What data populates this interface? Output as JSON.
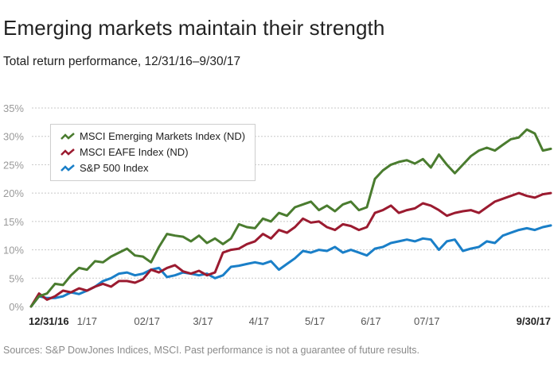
{
  "header": {
    "title": "Emerging markets maintain their strength",
    "subtitle": "Total return performance, 12/31/16–9/30/17"
  },
  "footer": {
    "source": "Sources: S&P DowJones Indices, MSCI. Past performance is not a guarantee of future results."
  },
  "chart_data": {
    "type": "line",
    "title": "Emerging markets maintain their strength",
    "subtitle": "Total return performance, 12/31/16–9/30/17",
    "xlabel": "",
    "ylabel": "",
    "ylim": [
      0,
      35
    ],
    "yticks": [
      0,
      5,
      10,
      15,
      20,
      25,
      30,
      35
    ],
    "ytick_labels": [
      "0%",
      "5%",
      "10%",
      "15%",
      "20%",
      "25%",
      "30%",
      "35%"
    ],
    "grid": true,
    "legend_position": "top-left",
    "x_range": [
      0,
      65
    ],
    "xticks": [
      {
        "x": 0,
        "label": "12/31/16",
        "bold": true
      },
      {
        "x": 7,
        "label": "1/17",
        "bold": false
      },
      {
        "x": 14.5,
        "label": "02/17",
        "bold": false
      },
      {
        "x": 21.5,
        "label": "3/17",
        "bold": false
      },
      {
        "x": 28.5,
        "label": "4/17",
        "bold": false
      },
      {
        "x": 35.5,
        "label": "5/17",
        "bold": false
      },
      {
        "x": 42.5,
        "label": "6/17",
        "bold": false
      },
      {
        "x": 49.5,
        "label": "07/17",
        "bold": false
      },
      {
        "x": 63.5,
        "label": "9/30/17",
        "bold": true
      }
    ],
    "series": [
      {
        "name": "MSCI Emerging Markets Index (ND)",
        "color": "#4a7c2f",
        "values": [
          0,
          1.8,
          2.3,
          4.0,
          3.8,
          5.5,
          6.8,
          6.5,
          8.0,
          7.8,
          8.8,
          9.5,
          10.2,
          9.0,
          8.8,
          7.8,
          10.5,
          12.8,
          12.5,
          12.3,
          11.5,
          12.5,
          11.2,
          12.0,
          11.0,
          12.0,
          14.5,
          14.0,
          13.8,
          15.5,
          15.0,
          16.5,
          16.0,
          17.5,
          18.0,
          18.5,
          17.0,
          17.8,
          16.8,
          18.0,
          18.5,
          17.0,
          17.5,
          22.5,
          24.0,
          25.0,
          25.5,
          25.8,
          25.2,
          26.0,
          24.5,
          26.8,
          25.0,
          23.5,
          25.0,
          26.5,
          27.5,
          28.0,
          27.5,
          28.5,
          29.5,
          29.8,
          31.2,
          30.5,
          27.5,
          27.8
        ],
        "style": "line"
      },
      {
        "name": "MSCI EAFE Index (ND)",
        "color": "#9b1b30",
        "values": [
          0,
          2.3,
          1.2,
          1.8,
          2.8,
          2.5,
          3.2,
          2.8,
          3.5,
          4.0,
          3.5,
          4.5,
          4.5,
          4.2,
          4.8,
          6.5,
          6.0,
          6.8,
          7.3,
          6.2,
          5.8,
          6.3,
          5.5,
          6.0,
          9.5,
          10.0,
          10.2,
          11.0,
          11.5,
          12.8,
          12.0,
          13.5,
          13.0,
          14.0,
          15.5,
          14.8,
          15.0,
          14.0,
          13.5,
          14.5,
          14.2,
          13.5,
          14.0,
          16.5,
          17.0,
          17.8,
          16.5,
          17.0,
          17.3,
          18.2,
          17.8,
          17.0,
          16.0,
          16.5,
          16.8,
          17.0,
          16.5,
          17.5,
          18.5,
          19.0,
          19.5,
          20.0,
          19.5,
          19.2,
          19.8,
          20.0
        ],
        "style": "line"
      },
      {
        "name": "S&P 500 Index",
        "color": "#1a7fc8",
        "values": [
          0,
          1.8,
          1.5,
          1.5,
          1.8,
          2.5,
          2.2,
          2.8,
          3.5,
          4.5,
          5.0,
          5.8,
          6.0,
          5.5,
          5.8,
          6.5,
          6.8,
          5.2,
          5.5,
          6.0,
          5.8,
          5.5,
          5.8,
          5.0,
          5.5,
          7.0,
          7.2,
          7.5,
          7.8,
          7.5,
          8.0,
          6.5,
          7.5,
          8.5,
          9.8,
          9.5,
          10.0,
          9.8,
          10.5,
          9.5,
          10.0,
          9.5,
          9.0,
          10.2,
          10.5,
          11.2,
          11.5,
          11.8,
          11.5,
          12.0,
          11.8,
          10.0,
          11.5,
          11.8,
          9.8,
          10.2,
          10.5,
          11.5,
          11.2,
          12.5,
          13.0,
          13.5,
          13.8,
          13.5,
          14.0,
          14.3
        ],
        "style": "line"
      }
    ]
  }
}
